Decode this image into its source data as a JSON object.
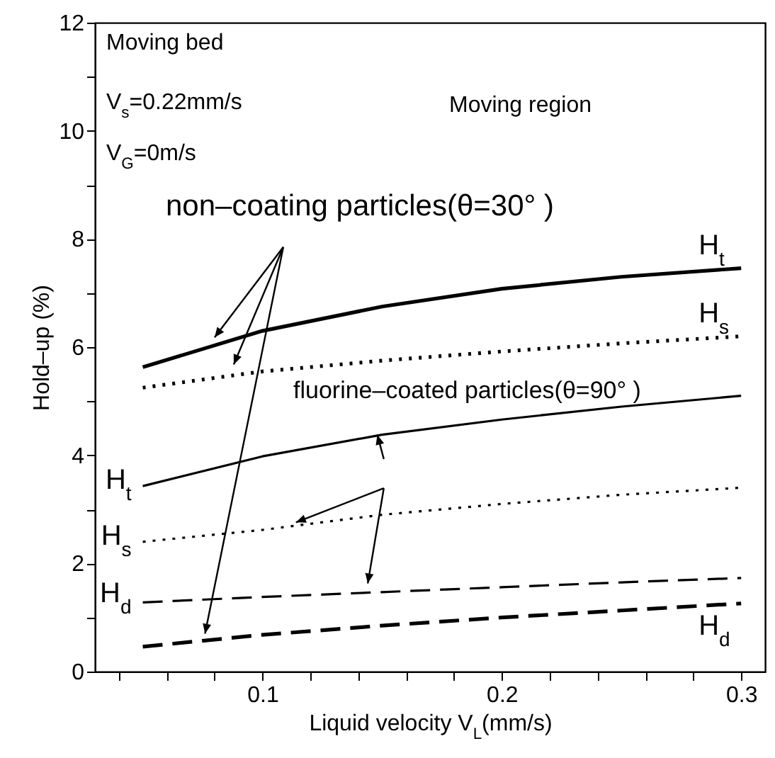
{
  "chart_data": {
    "type": "line",
    "xlabel": "Liquid velocity V$_{L}$(mm/s)",
    "ylabel": "Hold–up (%)",
    "x": [
      0.05,
      0.1,
      0.15,
      0.2,
      0.25,
      0.3
    ],
    "series": [
      {
        "name": "H$_{t}$",
        "color": "#000000",
        "line_style": "solid",
        "values": [
          5.63,
          6.3,
          6.75,
          7.08,
          7.3,
          7.46
        ]
      },
      {
        "name": "H$_{s}$",
        "color": "#000000",
        "line_style": "dotted",
        "values": [
          5.25,
          5.55,
          5.75,
          5.92,
          6.07,
          6.2
        ]
      },
      {
        "name": "H$_{d}$",
        "color": "#000000",
        "line_style": "dashed",
        "values": [
          0.46,
          0.68,
          0.85,
          1.0,
          1.13,
          1.26
        ]
      },
      {
        "name": "H$_{t}$",
        "color": "#000000",
        "line_style": "solid",
        "values": [
          3.43,
          3.98,
          4.38,
          4.66,
          4.9,
          5.1
        ]
      },
      {
        "name": "H$_{s}$",
        "color": "#000000",
        "line_style": "dotted",
        "values": [
          2.4,
          2.62,
          2.9,
          3.1,
          3.27,
          3.4
        ]
      },
      {
        "name": "H$_{d}$",
        "color": "#000000",
        "line_style": "dashed",
        "values": [
          1.28,
          1.38,
          1.47,
          1.56,
          1.65,
          1.73
        ]
      }
    ],
    "annotations": [
      "Moving bed",
      "V$_{s}$=0.22mm/s",
      "V$_{G}$=0m/s",
      "Moving region",
      "non–coating particles(θ=30° )",
      "fluorine–coated particles(θ=90° )"
    ],
    "xlim": [
      0.03,
      0.31
    ],
    "ylim": [
      0,
      12
    ],
    "xticks": [
      {
        "value": 0.04,
        "label": null
      },
      {
        "value": 0.06,
        "label": null
      },
      {
        "value": 0.08,
        "label": null
      },
      0.1,
      {
        "value": 0.12,
        "label": null
      },
      {
        "value": 0.14,
        "label": null
      },
      {
        "value": 0.16,
        "label": null
      },
      {
        "value": 0.18,
        "label": null
      },
      0.2,
      {
        "value": 0.22,
        "label": null
      },
      {
        "value": 0.24,
        "label": null
      },
      {
        "value": 0.26,
        "label": null
      },
      {
        "value": 0.28,
        "label": null
      },
      0.3
    ],
    "yticks": [
      0,
      {
        "value": 1,
        "label": null
      },
      2,
      {
        "value": 3,
        "label": null
      },
      4,
      {
        "value": 5,
        "label": null
      },
      6,
      {
        "value": 7,
        "label": null
      },
      8,
      {
        "value": 9,
        "label": null
      },
      10,
      {
        "value": 11,
        "label": null
      },
      12
    ],
    "marker": "none"
  }
}
